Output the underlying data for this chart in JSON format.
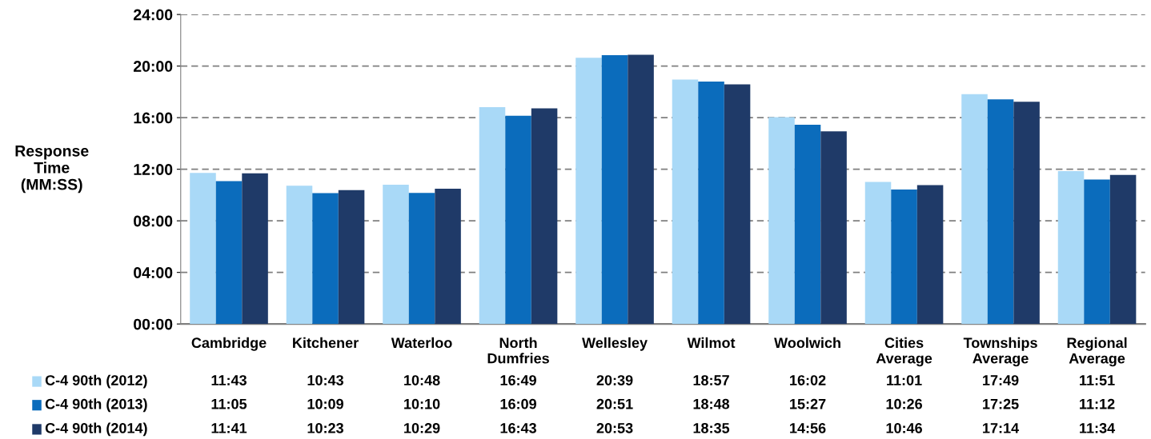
{
  "chart_data": {
    "type": "bar",
    "ylabel": "Response\nTime\n(MM:SS)",
    "categories": [
      "Cambridge",
      "Kitchener",
      "Waterloo",
      "North\nDumfries",
      "Wellesley",
      "Wilmot",
      "Woolwich",
      "Cities\nAverage",
      "Townships\nAverage",
      "Regional\nAverage"
    ],
    "series": [
      {
        "name": "C-4 90th (2012)",
        "color": "#a9d9f7",
        "values": [
          11.7167,
          10.7167,
          10.8,
          16.8167,
          20.65,
          18.95,
          16.0333,
          11.0167,
          17.8167,
          11.85
        ],
        "value_labels": [
          "11:43",
          "10:43",
          "10:48",
          "16:49",
          "20:39",
          "18:57",
          "16:02",
          "11:01",
          "17:49",
          "11:51"
        ]
      },
      {
        "name": "C-4 90th (2013)",
        "color": "#0b6cbc",
        "values": [
          11.0833,
          10.15,
          10.1667,
          16.15,
          20.85,
          18.8,
          15.45,
          10.4333,
          17.4167,
          11.2
        ],
        "value_labels": [
          "11:05",
          "10:09",
          "10:10",
          "16:09",
          "20:51",
          "18:48",
          "15:27",
          "10:26",
          "17:25",
          "11:12"
        ]
      },
      {
        "name": "C-4 90th (2014)",
        "color": "#1f3a68",
        "values": [
          11.6833,
          10.3833,
          10.4833,
          16.7167,
          20.8833,
          18.5833,
          14.9333,
          10.7667,
          17.2333,
          11.5667
        ],
        "value_labels": [
          "11:41",
          "10:23",
          "10:29",
          "16:43",
          "20:53",
          "18:35",
          "14:56",
          "10:46",
          "17:14",
          "11:34"
        ]
      }
    ],
    "ylim": [
      0,
      24
    ],
    "yticks": [
      {
        "value": 0,
        "label": "00:00"
      },
      {
        "value": 4,
        "label": "04:00"
      },
      {
        "value": 8,
        "label": "08:00"
      },
      {
        "value": 12,
        "label": "12:00"
      },
      {
        "value": 16,
        "label": "16:00"
      },
      {
        "value": 20,
        "label": "20:00"
      },
      {
        "value": 24,
        "label": "24:00"
      }
    ],
    "grid": "y",
    "line_style": "dashed",
    "legend": "bottom"
  }
}
